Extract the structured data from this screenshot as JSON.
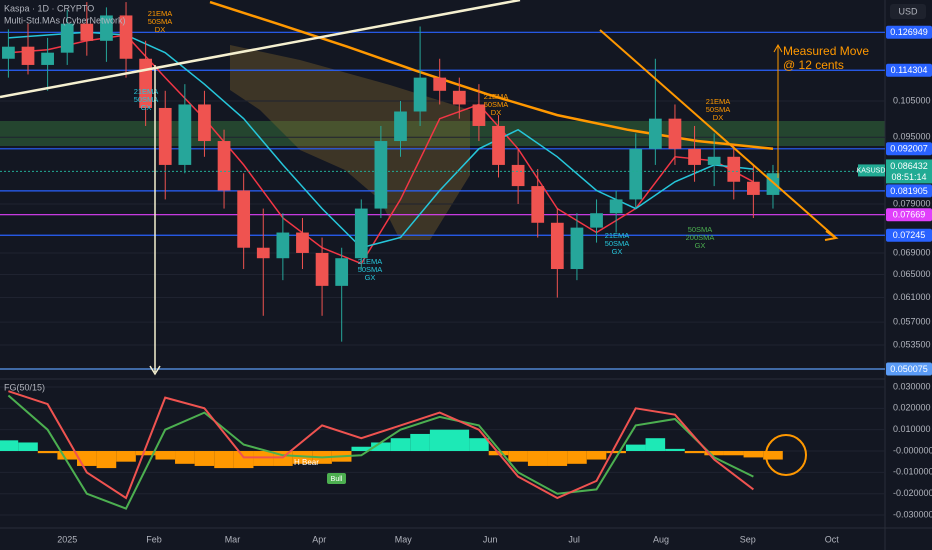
{
  "header": {
    "symbol_line": "Kaspa · 1D · CRYPTO",
    "indicator": "Multi-Std.MAs (CyberNetwork)",
    "currency": "USD"
  },
  "chart_data": [
    {
      "type": "candlestick",
      "log_scale": true,
      "up_color": "#26a69a",
      "down_color": "#ef5350",
      "xlim": [
        -24,
        292
      ],
      "ylim": [
        0.04884,
        0.1388
      ],
      "yticks": [
        {
          "value": 0.105,
          "label": "0.105000"
        },
        {
          "value": 0.095,
          "label": "0.095000"
        },
        {
          "value": 0.079,
          "label": "0.079000"
        },
        {
          "value": 0.069,
          "label": "0.069000"
        },
        {
          "value": 0.065,
          "label": "0.065000"
        },
        {
          "value": 0.061,
          "label": "0.061000"
        },
        {
          "value": 0.057,
          "label": "0.057000"
        },
        {
          "value": 0.0535,
          "label": "0.053500"
        }
      ],
      "x": [
        -21,
        -14,
        -7,
        0,
        7,
        14,
        21,
        28,
        35,
        42,
        49,
        56,
        63,
        70,
        77,
        84,
        91,
        98,
        105,
        112,
        119,
        126,
        133,
        140,
        147,
        154,
        161,
        168,
        175,
        182,
        189,
        196,
        203,
        210,
        217,
        224,
        231,
        238,
        245,
        252
      ],
      "open": [
        0.118,
        0.122,
        0.116,
        0.12,
        0.13,
        0.124,
        0.133,
        0.118,
        0.103,
        0.088,
        0.104,
        0.094,
        0.082,
        0.07,
        0.068,
        0.073,
        0.069,
        0.063,
        0.068,
        0.078,
        0.094,
        0.102,
        0.112,
        0.108,
        0.104,
        0.098,
        0.088,
        0.083,
        0.075,
        0.066,
        0.074,
        0.077,
        0.08,
        0.092,
        0.1,
        0.092,
        0.088,
        0.09,
        0.084,
        0.081
      ],
      "high": [
        0.128,
        0.13,
        0.125,
        0.135,
        0.138,
        0.136,
        0.138,
        0.124,
        0.108,
        0.11,
        0.108,
        0.097,
        0.086,
        0.078,
        0.077,
        0.076,
        0.072,
        0.07,
        0.08,
        0.098,
        0.105,
        0.129,
        0.118,
        0.112,
        0.11,
        0.101,
        0.092,
        0.087,
        0.078,
        0.077,
        0.08,
        0.082,
        0.096,
        0.118,
        0.104,
        0.098,
        0.096,
        0.093,
        0.088,
        0.088
      ],
      "low": [
        0.112,
        0.113,
        0.108,
        0.116,
        0.119,
        0.117,
        0.112,
        0.098,
        0.08,
        0.086,
        0.09,
        0.078,
        0.066,
        0.058,
        0.064,
        0.066,
        0.058,
        0.054,
        0.066,
        0.076,
        0.09,
        0.098,
        0.104,
        0.1,
        0.094,
        0.085,
        0.079,
        0.072,
        0.061,
        0.064,
        0.071,
        0.073,
        0.078,
        0.088,
        0.088,
        0.084,
        0.083,
        0.08,
        0.076,
        0.078
      ],
      "close": [
        0.122,
        0.116,
        0.12,
        0.13,
        0.124,
        0.133,
        0.118,
        0.103,
        0.088,
        0.104,
        0.094,
        0.082,
        0.07,
        0.068,
        0.073,
        0.069,
        0.063,
        0.068,
        0.078,
        0.094,
        0.102,
        0.112,
        0.108,
        0.104,
        0.098,
        0.088,
        0.083,
        0.075,
        0.066,
        0.074,
        0.077,
        0.08,
        0.092,
        0.1,
        0.092,
        0.088,
        0.09,
        0.084,
        0.081,
        0.086
      ],
      "lines": [
        {
          "color": "#f23645",
          "x": [
            -21,
            -7,
            7,
            21,
            35,
            49,
            63,
            77,
            91,
            105,
            119,
            133,
            147,
            161,
            175,
            189,
            203,
            217,
            231,
            245
          ],
          "values": [
            0.12,
            0.121,
            0.124,
            0.126,
            0.112,
            0.1,
            0.088,
            0.076,
            0.07,
            0.067,
            0.08,
            0.1,
            0.104,
            0.092,
            0.078,
            0.073,
            0.078,
            0.09,
            0.089,
            0.084
          ]
        },
        {
          "color": "#26c6da",
          "x": [
            -21,
            -7,
            7,
            21,
            35,
            49,
            63,
            77,
            91,
            105,
            119,
            133,
            147,
            161,
            175,
            189,
            203,
            217,
            231,
            245
          ],
          "values": [
            0.125,
            0.126,
            0.127,
            0.126,
            0.12,
            0.11,
            0.1,
            0.088,
            0.078,
            0.07,
            0.072,
            0.082,
            0.092,
            0.097,
            0.09,
            0.082,
            0.078,
            0.084,
            0.088,
            0.087
          ]
        },
        {
          "color": "#ff9800",
          "x": [
            51,
            75,
            100,
            125,
            150,
            175,
            200,
            225,
            252
          ],
          "values": [
            0.138,
            0.13,
            0.122,
            0.114,
            0.107,
            0.101,
            0.097,
            0.094,
            0.092
          ]
        }
      ],
      "levels": [
        0.126949,
        0.114304,
        0.092007,
        0.081905,
        0.07245,
        0.050075,
        0.07669
      ],
      "level_colors": [
        "#2962ff",
        "#2962ff",
        "#2962ff",
        "#2962ff",
        "#2962ff",
        "#5b9cf6",
        "#e040fb"
      ],
      "symbol": "KASUSD",
      "price": 0.086432,
      "countdown": "08:51:14",
      "price_color": "#22ab94",
      "annotations": [
        {
          "lines": [
            "21EMA",
            "50SMA",
            "DX"
          ],
          "color": "#ff9800"
        },
        {
          "lines": [
            "21EMA",
            "50SMA",
            "GX"
          ],
          "color": "#26c6da"
        },
        {
          "lines": [
            "21EMA",
            "50SMA",
            "DX"
          ],
          "color": "#ff9800"
        },
        {
          "lines": [
            "21EMA",
            "50SMA",
            "GX"
          ],
          "color": "#26c6da"
        },
        {
          "lines": [
            "21EMA",
            "50SMA",
            "GX"
          ],
          "color": "#26c6da"
        },
        {
          "lines": [
            "50SMA",
            "200SMA",
            "GX"
          ],
          "color": "#4caf50"
        },
        {
          "lines": [
            "21EMA",
            "50SMA",
            "DX"
          ],
          "color": "#ff9800"
        }
      ],
      "measured_move": [
        "Measured Move",
        "@ 12 cents"
      ]
    },
    {
      "type": "bar",
      "title": "FG(50/15)",
      "pos_color": "#1de9b6",
      "neg_color": "#ff9800",
      "xlim": [
        -24,
        292
      ],
      "ylim": [
        -0.0356,
        0.0328
      ],
      "yticks": [
        {
          "value": 0.03,
          "label": "0.030000"
        },
        {
          "value": 0.02,
          "label": "0.020000"
        },
        {
          "value": 0.01,
          "label": "0.010000"
        },
        {
          "value": 0,
          "label": "-0.000000"
        },
        {
          "value": -0.01,
          "label": "-0.010000"
        },
        {
          "value": -0.02,
          "label": "-0.020000"
        },
        {
          "value": -0.03,
          "label": "-0.030000"
        }
      ],
      "xticks": [
        {
          "value": 0,
          "label": "2025"
        },
        {
          "value": 31,
          "label": "Feb"
        },
        {
          "value": 59,
          "label": "Mar"
        },
        {
          "value": 90,
          "label": "Apr"
        },
        {
          "value": 120,
          "label": "May"
        },
        {
          "value": 151,
          "label": "Jun"
        },
        {
          "value": 181,
          "label": "Jul"
        },
        {
          "value": 212,
          "label": "Aug"
        },
        {
          "value": 243,
          "label": "Sep"
        },
        {
          "value": 273,
          "label": "Oct"
        }
      ],
      "x": [
        -21,
        -14,
        -7,
        0,
        7,
        14,
        21,
        28,
        35,
        42,
        49,
        56,
        63,
        70,
        77,
        84,
        91,
        98,
        105,
        112,
        119,
        126,
        133,
        140,
        147,
        154,
        161,
        168,
        175,
        182,
        189,
        196,
        203,
        210,
        217,
        224,
        231,
        238,
        245,
        252
      ],
      "values": [
        0.005,
        0.004,
        -0.001,
        -0.004,
        -0.007,
        -0.008,
        -0.005,
        -0.002,
        -0.004,
        -0.006,
        -0.007,
        -0.008,
        -0.008,
        -0.007,
        -0.007,
        -0.006,
        -0.006,
        -0.005,
        0.002,
        0.004,
        0.006,
        0.008,
        0.01,
        0.01,
        0.006,
        -0.002,
        -0.005,
        -0.007,
        -0.007,
        -0.006,
        -0.004,
        -0.001,
        0.003,
        0.006,
        0.001,
        -0.001,
        -0.002,
        -0.002,
        -0.003,
        -0.004
      ],
      "lines": [
        {
          "color": "#4caf50",
          "x": [
            -21,
            -7,
            7,
            21,
            35,
            49,
            63,
            77,
            91,
            105,
            119,
            133,
            147,
            161,
            175,
            189,
            203,
            217,
            231,
            245
          ],
          "values": [
            0.026,
            0.01,
            -0.02,
            -0.027,
            0.01,
            0.018,
            0.003,
            -0.002,
            -0.003,
            -0.002,
            0.01,
            0.016,
            0.012,
            -0.01,
            -0.02,
            -0.018,
            0.012,
            0.015,
            -0.003,
            -0.012
          ]
        },
        {
          "color": "#ef5350",
          "x": [
            -21,
            -7,
            7,
            21,
            35,
            49,
            63,
            77,
            91,
            105,
            119,
            133,
            147,
            161,
            175,
            189,
            203,
            217,
            231,
            245
          ],
          "values": [
            0.028,
            0.022,
            -0.01,
            -0.022,
            0.025,
            0.02,
            -0.003,
            -0.003,
            0.012,
            0.006,
            0.012,
            0.018,
            0.01,
            -0.012,
            -0.022,
            -0.014,
            0.02,
            0.017,
            -0.004,
            -0.018
          ]
        }
      ],
      "labels": [
        "H Bear",
        "Bull"
      ]
    }
  ]
}
